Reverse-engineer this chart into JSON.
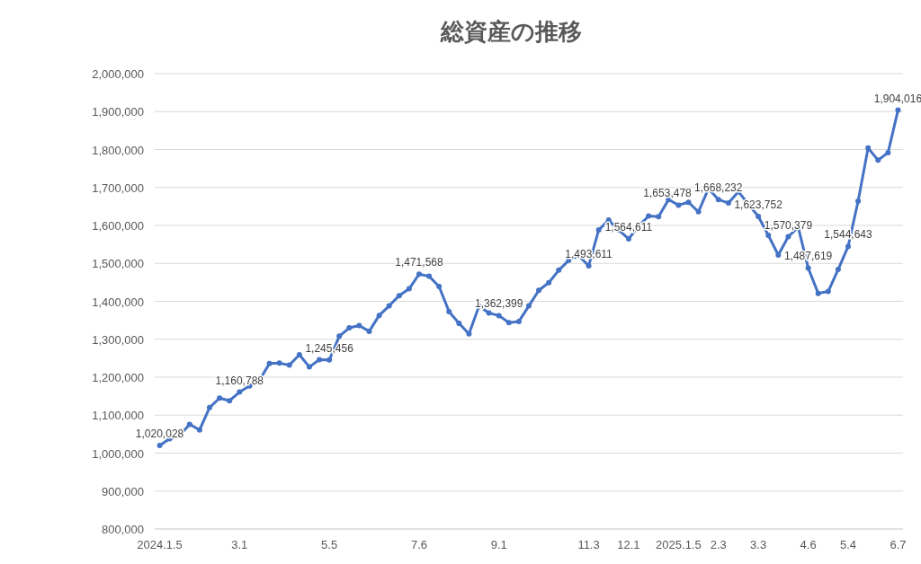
{
  "chart_data": {
    "type": "line",
    "title": "総資産の推移",
    "categories": [
      "2024.1.5",
      null,
      null,
      null,
      null,
      null,
      null,
      null,
      "3.1",
      null,
      null,
      null,
      null,
      null,
      null,
      null,
      null,
      "5.5",
      null,
      null,
      null,
      null,
      null,
      null,
      null,
      null,
      "7.6",
      null,
      null,
      null,
      null,
      null,
      null,
      null,
      "9.1",
      null,
      null,
      null,
      null,
      null,
      null,
      null,
      null,
      "11.3",
      null,
      null,
      null,
      "12.1",
      null,
      null,
      null,
      null,
      "2025.1.5",
      null,
      null,
      null,
      "2.3",
      null,
      null,
      null,
      "3.3",
      null,
      null,
      null,
      null,
      "4.6",
      null,
      null,
      null,
      "5.4",
      null,
      null,
      null,
      null,
      "6.7"
    ],
    "values": [
      1020028,
      1038000,
      1046000,
      1076000,
      1061000,
      1120000,
      1145000,
      1138000,
      1160788,
      1177000,
      1192000,
      1236000,
      1237000,
      1232000,
      1259000,
      1227000,
      1246000,
      1245456,
      1308000,
      1330000,
      1336000,
      1321000,
      1363000,
      1388000,
      1415000,
      1433000,
      1471568,
      1466000,
      1439000,
      1373000,
      1342000,
      1314000,
      1387000,
      1369000,
      1362399,
      1344000,
      1347000,
      1388000,
      1429000,
      1449000,
      1482000,
      1508000,
      1520000,
      1493611,
      1588000,
      1614000,
      1588000,
      1564611,
      1598000,
      1625000,
      1623000,
      1668000,
      1653478,
      1661000,
      1636000,
      1697000,
      1668232,
      1659000,
      1689000,
      1656000,
      1623752,
      1574000,
      1522000,
      1570379,
      1595000,
      1487619,
      1421000,
      1426000,
      1484000,
      1544643,
      1664000,
      1804000,
      1772000,
      1792000,
      1904016
    ],
    "value_labels": [
      "1,020,028",
      null,
      null,
      null,
      null,
      null,
      null,
      null,
      "1,160,788",
      null,
      null,
      null,
      null,
      null,
      null,
      null,
      null,
      "1,245,456",
      null,
      null,
      null,
      null,
      null,
      null,
      null,
      null,
      "1,471,568",
      null,
      null,
      null,
      null,
      null,
      null,
      null,
      "1,362,399",
      null,
      null,
      null,
      null,
      null,
      null,
      null,
      null,
      "1,493,611",
      null,
      null,
      null,
      "1,564,611",
      null,
      null,
      null,
      null,
      "1,653,478",
      null,
      null,
      null,
      "1,668,232",
      null,
      null,
      null,
      "1,623,752",
      null,
      null,
      "1,570,379",
      null,
      "1,487,619",
      null,
      null,
      null,
      "1,544,643",
      null,
      null,
      null,
      null,
      "1,904,016"
    ],
    "color": "#4472c4",
    "marker": "circle",
    "grid": "y",
    "ylim": [
      800000,
      2000000
    ],
    "yticks": [
      {
        "value": 800000,
        "label": "800,000"
      },
      {
        "value": 900000,
        "label": "900,000"
      },
      {
        "value": 1000000,
        "label": "1,000,000"
      },
      {
        "value": 1100000,
        "label": "1,100,000"
      },
      {
        "value": 1200000,
        "label": "1,200,000"
      },
      {
        "value": 1300000,
        "label": "1,300,000"
      },
      {
        "value": 1400000,
        "label": "1,400,000"
      },
      {
        "value": 1500000,
        "label": "1,500,000"
      },
      {
        "value": 1600000,
        "label": "1,600,000"
      },
      {
        "value": 1700000,
        "label": "1,700,000"
      },
      {
        "value": 1800000,
        "label": "1,800,000"
      },
      {
        "value": 1900000,
        "label": "1,900,000"
      },
      {
        "value": 2000000,
        "label": "2,000,000"
      }
    ]
  }
}
